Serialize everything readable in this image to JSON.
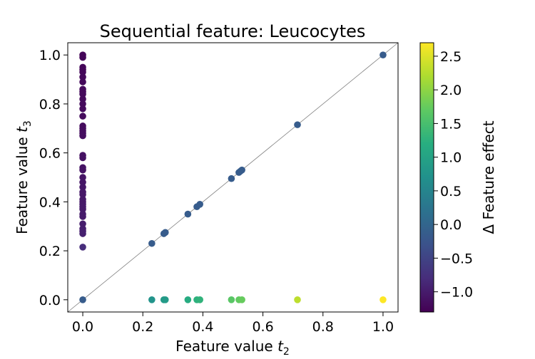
{
  "chart_data": {
    "type": "scatter",
    "title": "Sequential feature: Leucocytes",
    "xlabel": "Feature value",
    "xlabel_sub": "2",
    "ylabel": "Feature value",
    "ylabel_sub": "3",
    "xlim": [
      -0.05,
      1.05
    ],
    "ylim": [
      -0.05,
      1.05
    ],
    "xticks": [
      "0.0",
      "0.2",
      "0.4",
      "0.6",
      "0.8",
      "1.0"
    ],
    "yticks": [
      "0.0",
      "0.2",
      "0.4",
      "0.6",
      "0.8",
      "1.0"
    ],
    "xtick_values": [
      0,
      0.2,
      0.4,
      0.6,
      0.8,
      1.0
    ],
    "ytick_values": [
      0,
      0.2,
      0.4,
      0.6,
      0.8,
      1.0
    ],
    "reference_line": "y = x",
    "colorbar": {
      "label": "Δ Feature effect",
      "range": [
        -1.3,
        2.7
      ],
      "ticks": [
        "−1.0",
        "−0.5",
        "0.0",
        "0.5",
        "1.0",
        "1.5",
        "2.0",
        "2.5"
      ],
      "tick_values": [
        -1.0,
        -0.5,
        0.0,
        0.5,
        1.0,
        1.5,
        2.0,
        2.5
      ],
      "colormap": "viridis"
    },
    "series": [
      {
        "points": [
          {
            "x": 0,
            "y": 1.0,
            "c": -1.25
          },
          {
            "x": 0,
            "y": 0.99,
            "c": -1.25
          },
          {
            "x": 0,
            "y": 0.95,
            "c": -1.24
          },
          {
            "x": 0,
            "y": 0.94,
            "c": -1.24
          },
          {
            "x": 0,
            "y": 0.93,
            "c": -1.23
          },
          {
            "x": 0,
            "y": 0.91,
            "c": -1.22
          },
          {
            "x": 0,
            "y": 0.89,
            "c": -1.22
          },
          {
            "x": 0,
            "y": 0.86,
            "c": -1.21
          },
          {
            "x": 0,
            "y": 0.85,
            "c": -1.21
          },
          {
            "x": 0,
            "y": 0.84,
            "c": -1.2
          },
          {
            "x": 0,
            "y": 0.82,
            "c": -1.2
          },
          {
            "x": 0,
            "y": 0.8,
            "c": -1.19
          },
          {
            "x": 0,
            "y": 0.78,
            "c": -1.19
          },
          {
            "x": 0,
            "y": 0.75,
            "c": -1.18
          },
          {
            "x": 0,
            "y": 0.71,
            "c": -1.17
          },
          {
            "x": 0,
            "y": 0.7,
            "c": -1.17
          },
          {
            "x": 0,
            "y": 0.69,
            "c": -1.16
          },
          {
            "x": 0,
            "y": 0.68,
            "c": -1.16
          },
          {
            "x": 0,
            "y": 0.67,
            "c": -1.15
          },
          {
            "x": 0,
            "y": 0.59,
            "c": -1.12
          },
          {
            "x": 0,
            "y": 0.58,
            "c": -1.12
          },
          {
            "x": 0,
            "y": 0.54,
            "c": -1.1
          },
          {
            "x": 0,
            "y": 0.53,
            "c": -1.1
          },
          {
            "x": 0,
            "y": 0.5,
            "c": -1.08
          },
          {
            "x": 0,
            "y": 0.48,
            "c": -1.07
          },
          {
            "x": 0,
            "y": 0.46,
            "c": -1.06
          },
          {
            "x": 0,
            "y": 0.44,
            "c": -1.05
          },
          {
            "x": 0,
            "y": 0.43,
            "c": -1.05
          },
          {
            "x": 0,
            "y": 0.41,
            "c": -1.04
          },
          {
            "x": 0,
            "y": 0.4,
            "c": -1.03
          },
          {
            "x": 0,
            "y": 0.39,
            "c": -1.03
          },
          {
            "x": 0,
            "y": 0.38,
            "c": -1.02
          },
          {
            "x": 0,
            "y": 0.37,
            "c": -1.02
          },
          {
            "x": 0,
            "y": 0.35,
            "c": -1.01
          },
          {
            "x": 0,
            "y": 0.34,
            "c": -1.0
          },
          {
            "x": 0,
            "y": 0.31,
            "c": -0.98
          },
          {
            "x": 0,
            "y": 0.29,
            "c": -0.97
          },
          {
            "x": 0,
            "y": 0.28,
            "c": -0.96
          },
          {
            "x": 0,
            "y": 0.27,
            "c": -0.95
          },
          {
            "x": 0,
            "y": 0.215,
            "c": -0.8
          },
          {
            "x": 0,
            "y": 0,
            "c": -0.15
          },
          {
            "x": 0.23,
            "y": 0.23,
            "c": -0.15
          },
          {
            "x": 0.27,
            "y": 0.27,
            "c": -0.15
          },
          {
            "x": 0.275,
            "y": 0.275,
            "c": -0.15
          },
          {
            "x": 0.35,
            "y": 0.35,
            "c": -0.15
          },
          {
            "x": 0.38,
            "y": 0.38,
            "c": -0.15
          },
          {
            "x": 0.39,
            "y": 0.39,
            "c": -0.15
          },
          {
            "x": 0.495,
            "y": 0.495,
            "c": -0.15
          },
          {
            "x": 0.52,
            "y": 0.52,
            "c": -0.15
          },
          {
            "x": 0.525,
            "y": 0.525,
            "c": -0.15
          },
          {
            "x": 0.53,
            "y": 0.53,
            "c": -0.15
          },
          {
            "x": 0.715,
            "y": 0.715,
            "c": -0.15
          },
          {
            "x": 1.0,
            "y": 1.0,
            "c": -0.15
          },
          {
            "x": 0.23,
            "y": 0,
            "c": 0.75
          },
          {
            "x": 0.27,
            "y": 0,
            "c": 0.85
          },
          {
            "x": 0.275,
            "y": 0,
            "c": 0.88
          },
          {
            "x": 0.35,
            "y": 0,
            "c": 1.15
          },
          {
            "x": 0.38,
            "y": 0,
            "c": 1.25
          },
          {
            "x": 0.39,
            "y": 0,
            "c": 1.28
          },
          {
            "x": 0.495,
            "y": 0,
            "c": 1.65
          },
          {
            "x": 0.52,
            "y": 0,
            "c": 1.72
          },
          {
            "x": 0.53,
            "y": 0,
            "c": 1.75
          },
          {
            "x": 0.715,
            "y": 0,
            "c": 2.3
          },
          {
            "x": 1.0,
            "y": 0,
            "c": 2.7
          }
        ]
      }
    ]
  }
}
